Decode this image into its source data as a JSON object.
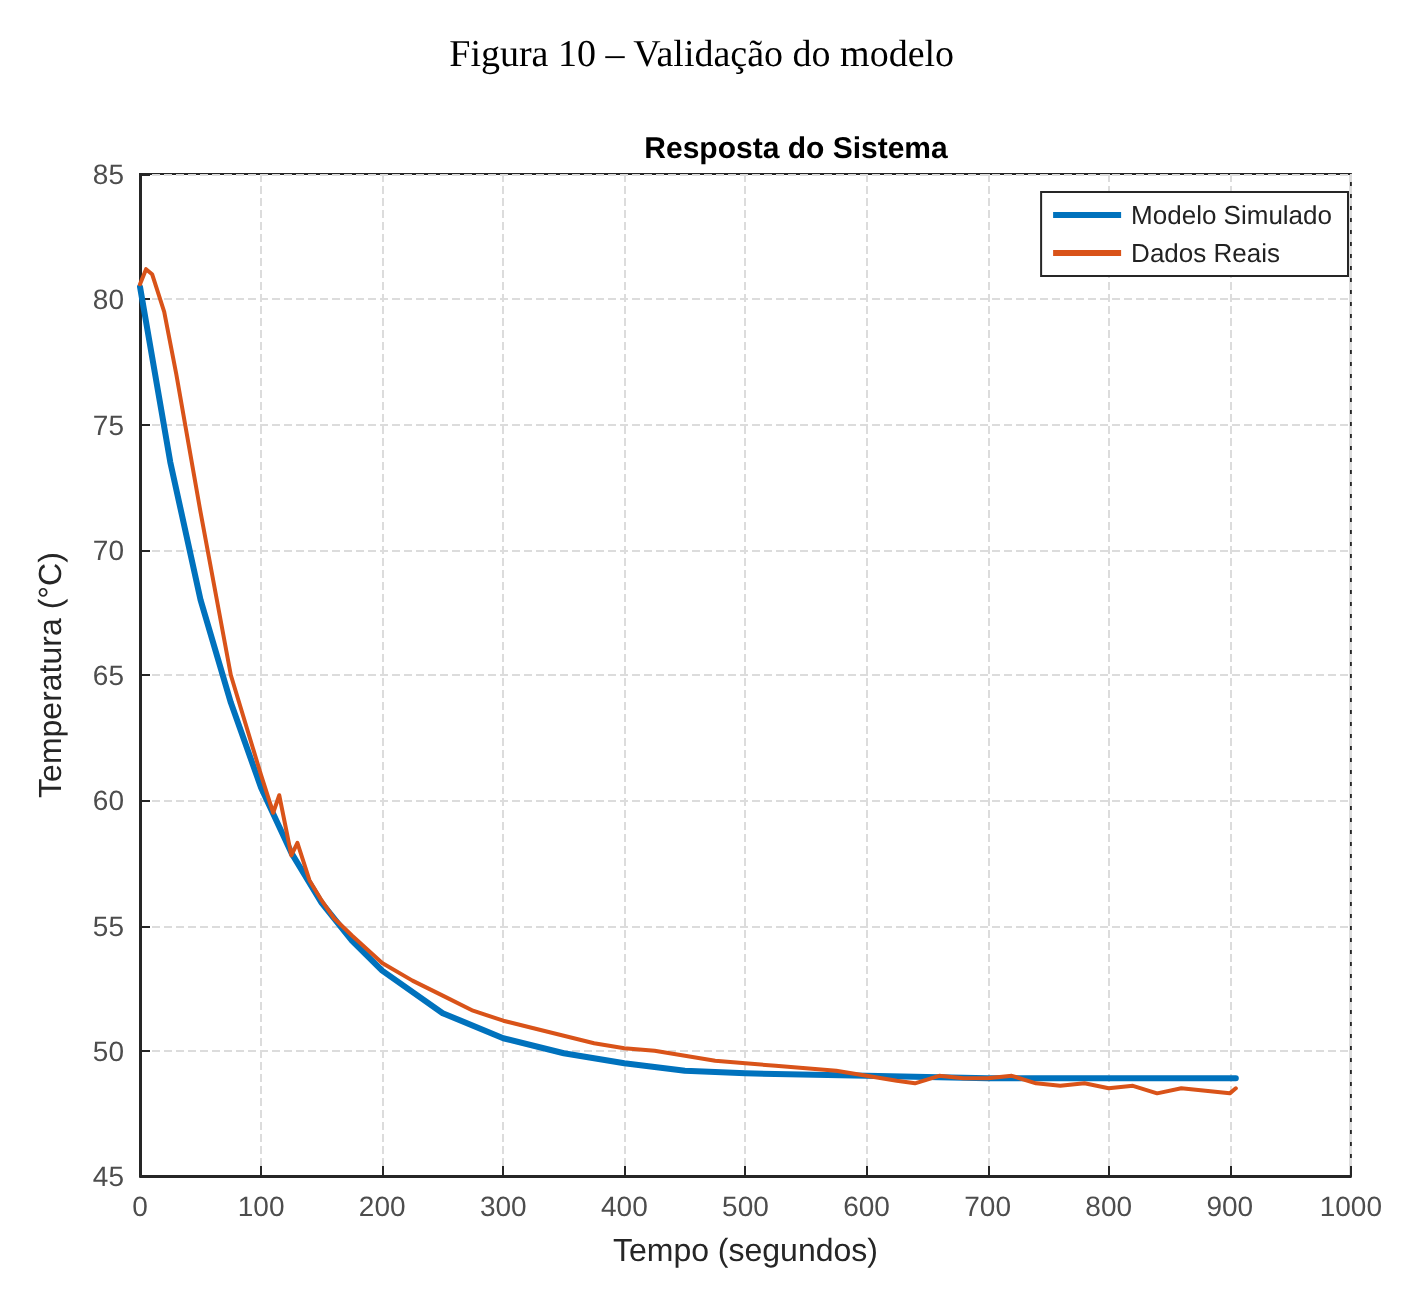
{
  "chart_data": {
    "type": "line",
    "title": "Resposta do Sistema",
    "annotations": [
      "Figura 10 – Validação do modelo"
    ],
    "xlabel": "Tempo (segundos)",
    "ylabel": "Temperatura (°C)",
    "xlim": [
      0,
      1000
    ],
    "xticks": [
      0,
      100,
      200,
      300,
      400,
      500,
      600,
      700,
      800,
      900,
      1000
    ],
    "ylim": [
      45,
      85
    ],
    "yticks": [
      45,
      50,
      55,
      60,
      65,
      70,
      75,
      80,
      85
    ],
    "grid": true,
    "legend": "top right",
    "marker": "none",
    "line_style": "solid",
    "series": [
      {
        "name": "Modelo Simulado",
        "color": "#0072bd",
        "x": [
          0,
          25,
          50,
          75,
          100,
          125,
          150,
          175,
          200,
          250,
          300,
          350,
          400,
          450,
          500,
          600,
          700,
          800,
          905
        ],
        "values": [
          80.5,
          73.5,
          68,
          63.9,
          60.5,
          57.9,
          55.9,
          54.4,
          53.2,
          51.5,
          50.5,
          49.9,
          49.5,
          49.2,
          49.1,
          49,
          48.9,
          48.9,
          48.9
        ]
      },
      {
        "name": "Dados Reais",
        "color": "#d95319",
        "x": [
          0,
          5,
          10,
          20,
          30,
          50,
          75,
          100,
          110,
          115,
          125,
          130,
          140,
          150,
          160,
          175,
          200,
          225,
          250,
          275,
          300,
          325,
          350,
          375,
          400,
          425,
          450,
          475,
          500,
          525,
          550,
          575,
          600,
          625,
          640,
          660,
          680,
          700,
          720,
          740,
          760,
          780,
          800,
          820,
          840,
          860,
          880,
          900,
          905
        ],
        "values": [
          80.6,
          81.2,
          81,
          79.5,
          77,
          71.5,
          65,
          61,
          59.5,
          60.2,
          57.8,
          58.3,
          56.8,
          56,
          55.3,
          54.6,
          53.5,
          52.8,
          52.2,
          51.6,
          51.2,
          50.9,
          50.6,
          50.3,
          50.1,
          50,
          49.8,
          49.6,
          49.5,
          49.4,
          49.3,
          49.2,
          49,
          48.8,
          48.7,
          49,
          48.9,
          48.9,
          49,
          48.7,
          48.6,
          48.7,
          48.5,
          48.6,
          48.3,
          48.5,
          48.4,
          48.3,
          48.5
        ]
      }
    ]
  }
}
